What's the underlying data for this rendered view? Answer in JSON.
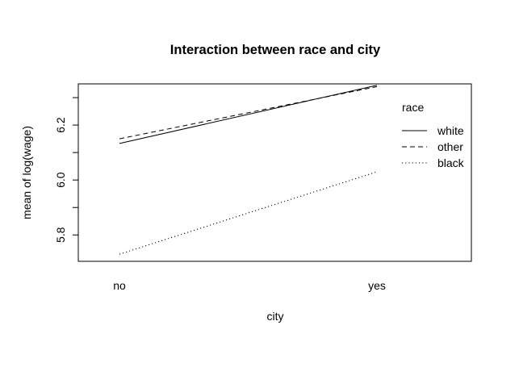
{
  "chart_data": {
    "type": "line",
    "title": "Interaction between race and city",
    "xlabel": "city",
    "ylabel": "mean of  log(wage)",
    "categories": [
      "no",
      "yes"
    ],
    "ylim": [
      5.704,
      6.35
    ],
    "yticks": [
      5.8,
      5.9,
      6.0,
      6.1,
      6.2,
      6.3
    ],
    "ytick_labels": [
      "5.8",
      "",
      "6.0",
      "",
      "6.2",
      ""
    ],
    "grid": false,
    "legend": {
      "title": "race",
      "placement": "top-right",
      "entries": [
        "white",
        "other",
        "black"
      ]
    },
    "series": [
      {
        "name": "white",
        "values": [
          6.133,
          6.345
        ],
        "line_style": "solid"
      },
      {
        "name": "other",
        "values": [
          6.15,
          6.34
        ],
        "line_style": "dashed"
      },
      {
        "name": "black",
        "values": [
          5.73,
          6.03
        ],
        "line_style": "dotted"
      }
    ],
    "colors": {
      "line": "#000000",
      "background": "#ffffff"
    }
  }
}
